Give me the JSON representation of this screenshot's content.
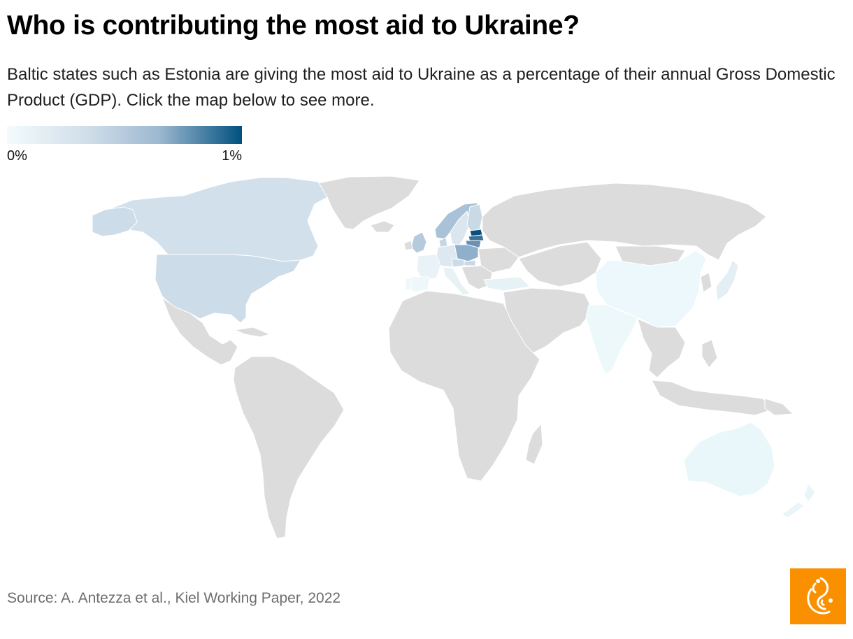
{
  "header": {
    "title": "Who is contributing the most aid to Ukraine?",
    "subtitle": "Baltic states such as Estonia are giving the most aid to Ukraine as a percentage of their annual Gross Domestic Product (GDP). Click the map below to see more."
  },
  "legend": {
    "min_label": "0%",
    "max_label": "1%",
    "min_value": 0,
    "max_value": 1,
    "colors": [
      "#f3fbfd",
      "#cfdde9",
      "#9cb8d0",
      "#00507f"
    ]
  },
  "map": {
    "measure": "aid to Ukraine as % of annual GDP",
    "no_data_color": "#dcdcdc",
    "highlighted_countries": [
      {
        "name": "Estonia",
        "band": "highest",
        "color": "#0b4f7c"
      },
      {
        "name": "Latvia",
        "band": "high",
        "color": "#3f6f95"
      },
      {
        "name": "Lithuania",
        "band": "high",
        "color": "#6a90b3"
      },
      {
        "name": "Poland",
        "band": "medium",
        "color": "#8fafcb"
      },
      {
        "name": "Norway",
        "band": "medium",
        "color": "#a9c2d8"
      },
      {
        "name": "United Kingdom",
        "band": "low-medium",
        "color": "#b6cadd"
      },
      {
        "name": "Canada",
        "band": "low",
        "color": "#d2e0eb"
      },
      {
        "name": "United States",
        "band": "low",
        "color": "#ccdce8"
      },
      {
        "name": "Finland",
        "band": "low",
        "color": "#c9d9e6"
      },
      {
        "name": "Sweden",
        "band": "low",
        "color": "#dbe6ef"
      },
      {
        "name": "Denmark",
        "band": "low",
        "color": "#c4d5e3"
      },
      {
        "name": "Germany",
        "band": "low",
        "color": "#dde8f0"
      },
      {
        "name": "Czech Republic",
        "band": "low",
        "color": "#cbdbe7"
      },
      {
        "name": "Slovakia",
        "band": "low",
        "color": "#c8d8e5"
      },
      {
        "name": "France",
        "band": "very low",
        "color": "#e9f2f6"
      },
      {
        "name": "Spain",
        "band": "very low",
        "color": "#eef7f9"
      },
      {
        "name": "Portugal",
        "band": "very low",
        "color": "#eef7f9"
      },
      {
        "name": "Italy",
        "band": "very low",
        "color": "#e8f1f5"
      },
      {
        "name": "Turkey",
        "band": "very low",
        "color": "#e6f2f6"
      },
      {
        "name": "China",
        "band": "very low",
        "color": "#ecf8fb"
      },
      {
        "name": "India",
        "band": "very low",
        "color": "#edf8fb"
      },
      {
        "name": "Japan",
        "band": "very low",
        "color": "#e3eef5"
      },
      {
        "name": "Australia",
        "band": "very low",
        "color": "#eaf7fa"
      },
      {
        "name": "New Zealand",
        "band": "very low",
        "color": "#e9f5f9"
      }
    ]
  },
  "footer": {
    "source": "Source: A. Antezza et al., Kiel Working Paper, 2022",
    "logo": "al-jazeera-logo",
    "logo_color": "#fa9000"
  }
}
